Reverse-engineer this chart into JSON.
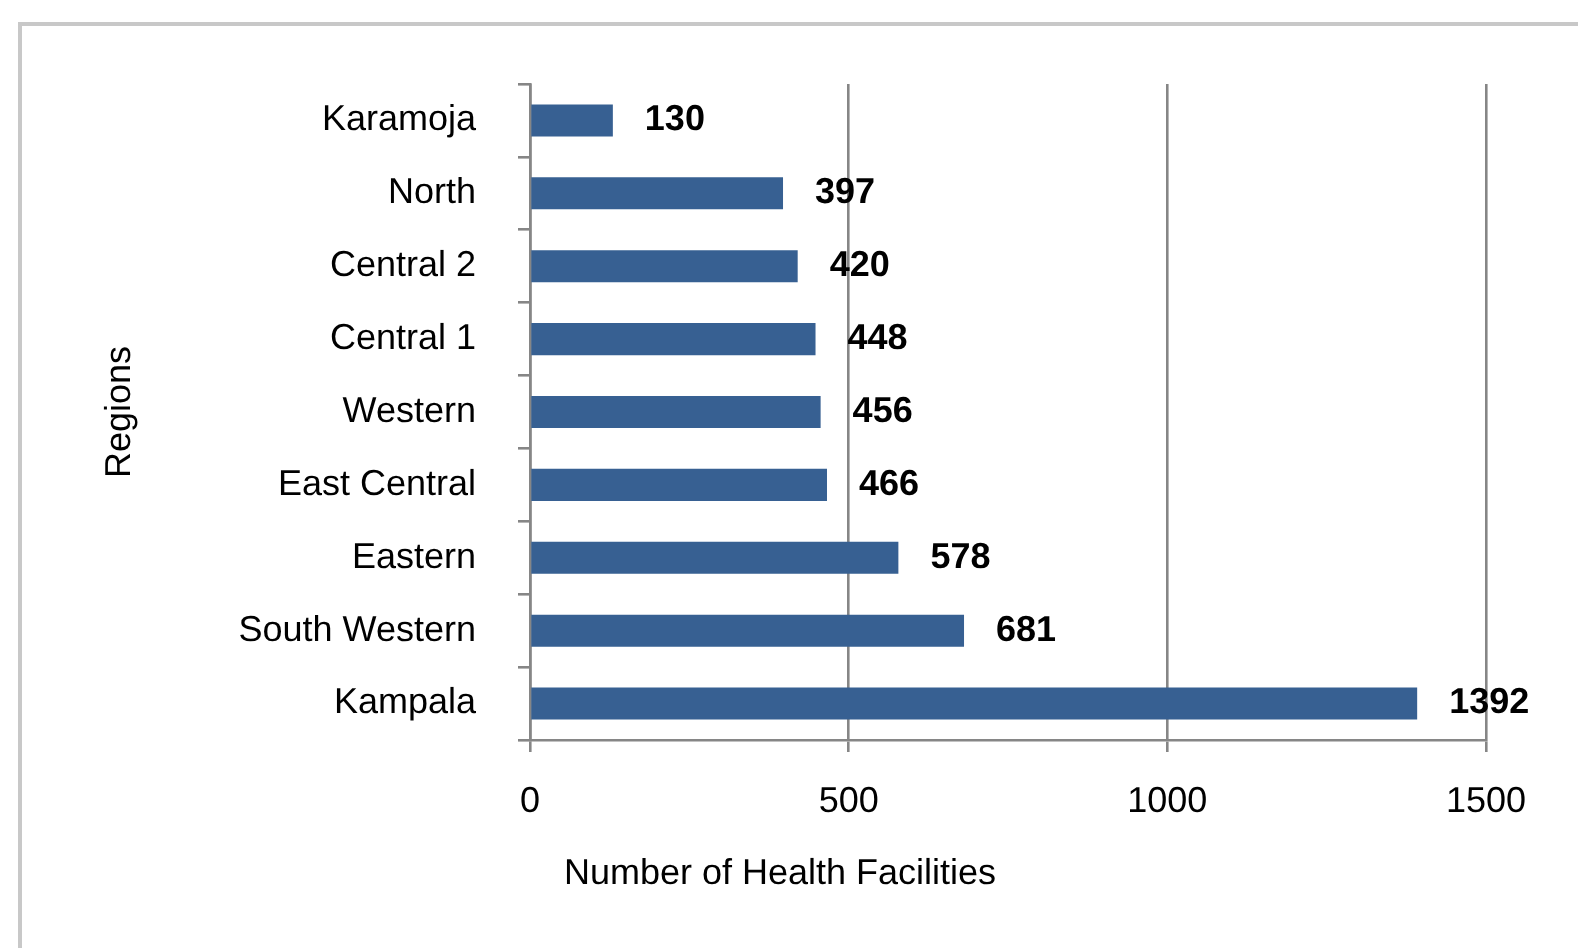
{
  "chart_data": {
    "type": "bar",
    "orientation": "horizontal",
    "categories": [
      "Karamoja",
      "North",
      "Central 2",
      "Central 1",
      "Western",
      "East Central",
      "Eastern",
      "South Western",
      "Kampala"
    ],
    "values": [
      130,
      397,
      420,
      448,
      456,
      466,
      578,
      681,
      1392
    ],
    "color": "#376092",
    "xlabel": "Number of Health Facilities",
    "ylabel": "Regions",
    "xlim": [
      0,
      1500
    ],
    "xticks": [
      0,
      500,
      1000,
      1500
    ],
    "grid": "x",
    "data_labels": true
  }
}
